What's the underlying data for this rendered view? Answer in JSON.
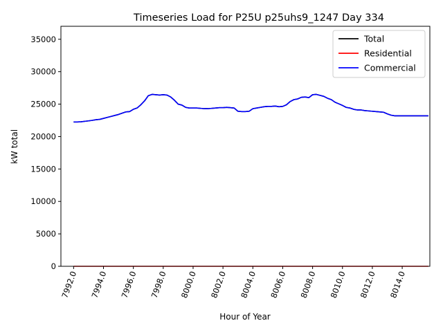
{
  "chart_data": {
    "type": "line",
    "title": "Timeseries Load for P25U p25uhs9_1247  Day 334",
    "xlabel": "Hour of Year",
    "ylabel": "kW total",
    "xlim": [
      7991.15,
      8015.85
    ],
    "ylim": [
      0,
      37000
    ],
    "xticks": [
      7992,
      7994,
      7996,
      7998,
      8000,
      8002,
      8004,
      8006,
      8008,
      8010,
      8012,
      8014
    ],
    "xtick_labels": [
      "7992.0",
      "7994.0",
      "7996.0",
      "7998.0",
      "8000.0",
      "8002.0",
      "8004.0",
      "8006.0",
      "8008.0",
      "8010.0",
      "8012.0",
      "8014.0"
    ],
    "yticks": [
      0,
      5000,
      10000,
      15000,
      20000,
      25000,
      30000,
      35000
    ],
    "ytick_labels": [
      "0",
      "5000",
      "10000",
      "15000",
      "20000",
      "25000",
      "30000",
      "35000"
    ],
    "legend_position": "top-right",
    "series": [
      {
        "name": "Total",
        "color": "#000000",
        "x": [
          7992.0,
          7992.25,
          7992.5,
          7992.75,
          7993.0,
          7993.25,
          7993.5,
          7993.75,
          7994.0,
          7994.25,
          7994.5,
          7994.75,
          7995.0,
          7995.25,
          7995.5,
          7995.75,
          7996.0,
          7996.25,
          7996.5,
          7996.75,
          7997.0,
          7997.25,
          7997.5,
          7997.75,
          7998.0,
          7998.25,
          7998.5,
          7998.75,
          7999.0,
          7999.25,
          7999.5,
          7999.75,
          8000.0,
          8000.25,
          8000.5,
          8000.75,
          8001.0,
          8001.25,
          8001.5,
          8001.75,
          8002.0,
          8002.25,
          8002.5,
          8002.75,
          8003.0,
          8003.25,
          8003.5,
          8003.75,
          8004.0,
          8004.25,
          8004.5,
          8004.75,
          8005.0,
          8005.25,
          8005.5,
          8005.75,
          8006.0,
          8006.25,
          8006.5,
          8006.75,
          8007.0,
          8007.25,
          8007.5,
          8007.75,
          8008.0,
          8008.25,
          8008.5,
          8008.75,
          8009.0,
          8009.25,
          8009.5,
          8009.75,
          8010.0,
          8010.25,
          8010.5,
          8010.75,
          8011.0,
          8011.25,
          8011.5,
          8011.75,
          8012.0,
          8012.25,
          8012.5,
          8012.75,
          8013.0,
          8013.25,
          8013.5,
          8013.75,
          8014.0,
          8014.25,
          8014.5,
          8014.75,
          8015.0,
          8015.25,
          8015.5,
          8015.75
        ],
        "values": [
          22250,
          22250,
          22280,
          22350,
          22420,
          22500,
          22600,
          22650,
          22800,
          22950,
          23100,
          23250,
          23400,
          23600,
          23800,
          23850,
          24200,
          24400,
          24900,
          25500,
          26300,
          26500,
          26450,
          26400,
          26450,
          26400,
          26100,
          25600,
          25000,
          24850,
          24500,
          24400,
          24400,
          24400,
          24350,
          24300,
          24300,
          24350,
          24400,
          24450,
          24450,
          24500,
          24450,
          24400,
          23900,
          23850,
          23850,
          23900,
          24300,
          24400,
          24500,
          24600,
          24650,
          24650,
          24700,
          24600,
          24650,
          24900,
          25400,
          25700,
          25800,
          26050,
          26100,
          26000,
          26450,
          26500,
          26350,
          26200,
          25900,
          25700,
          25300,
          25050,
          24800,
          24500,
          24400,
          24200,
          24100,
          24100,
          24000,
          23950,
          23900,
          23850,
          23800,
          23750,
          23500,
          23300,
          23200,
          23200,
          23200,
          23200,
          23200,
          23200,
          23200,
          23200,
          23200,
          23200
        ]
      },
      {
        "name": "Residential",
        "color": "#ff0000",
        "x": [
          7992.0,
          8015.75
        ],
        "values": [
          0,
          0
        ]
      },
      {
        "name": "Commercial",
        "color": "#0000ff",
        "x": [
          7992.0,
          7992.25,
          7992.5,
          7992.75,
          7993.0,
          7993.25,
          7993.5,
          7993.75,
          7994.0,
          7994.25,
          7994.5,
          7994.75,
          7995.0,
          7995.25,
          7995.5,
          7995.75,
          7996.0,
          7996.25,
          7996.5,
          7996.75,
          7997.0,
          7997.25,
          7997.5,
          7997.75,
          7998.0,
          7998.25,
          7998.5,
          7998.75,
          7999.0,
          7999.25,
          7999.5,
          7999.75,
          8000.0,
          8000.25,
          8000.5,
          8000.75,
          8001.0,
          8001.25,
          8001.5,
          8001.75,
          8002.0,
          8002.25,
          8002.5,
          8002.75,
          8003.0,
          8003.25,
          8003.5,
          8003.75,
          8004.0,
          8004.25,
          8004.5,
          8004.75,
          8005.0,
          8005.25,
          8005.5,
          8005.75,
          8006.0,
          8006.25,
          8006.5,
          8006.75,
          8007.0,
          8007.25,
          8007.5,
          8007.75,
          8008.0,
          8008.25,
          8008.5,
          8008.75,
          8009.0,
          8009.25,
          8009.5,
          8009.75,
          8010.0,
          8010.25,
          8010.5,
          8010.75,
          8011.0,
          8011.25,
          8011.5,
          8011.75,
          8012.0,
          8012.25,
          8012.5,
          8012.75,
          8013.0,
          8013.25,
          8013.5,
          8013.75,
          8014.0,
          8014.25,
          8014.5,
          8014.75,
          8015.0,
          8015.25,
          8015.5,
          8015.75
        ],
        "values": [
          22250,
          22250,
          22280,
          22350,
          22420,
          22500,
          22600,
          22650,
          22800,
          22950,
          23100,
          23250,
          23400,
          23600,
          23800,
          23850,
          24200,
          24400,
          24900,
          25500,
          26300,
          26500,
          26450,
          26400,
          26450,
          26400,
          26100,
          25600,
          25000,
          24850,
          24500,
          24400,
          24400,
          24400,
          24350,
          24300,
          24300,
          24350,
          24400,
          24450,
          24450,
          24500,
          24450,
          24400,
          23900,
          23850,
          23850,
          23900,
          24300,
          24400,
          24500,
          24600,
          24650,
          24650,
          24700,
          24600,
          24650,
          24900,
          25400,
          25700,
          25800,
          26050,
          26100,
          26000,
          26450,
          26500,
          26350,
          26200,
          25900,
          25700,
          25300,
          25050,
          24800,
          24500,
          24400,
          24200,
          24100,
          24100,
          24000,
          23950,
          23900,
          23850,
          23800,
          23750,
          23500,
          23300,
          23200,
          23200,
          23200,
          23200,
          23200,
          23200,
          23200,
          23200,
          23200,
          23200
        ]
      }
    ]
  }
}
